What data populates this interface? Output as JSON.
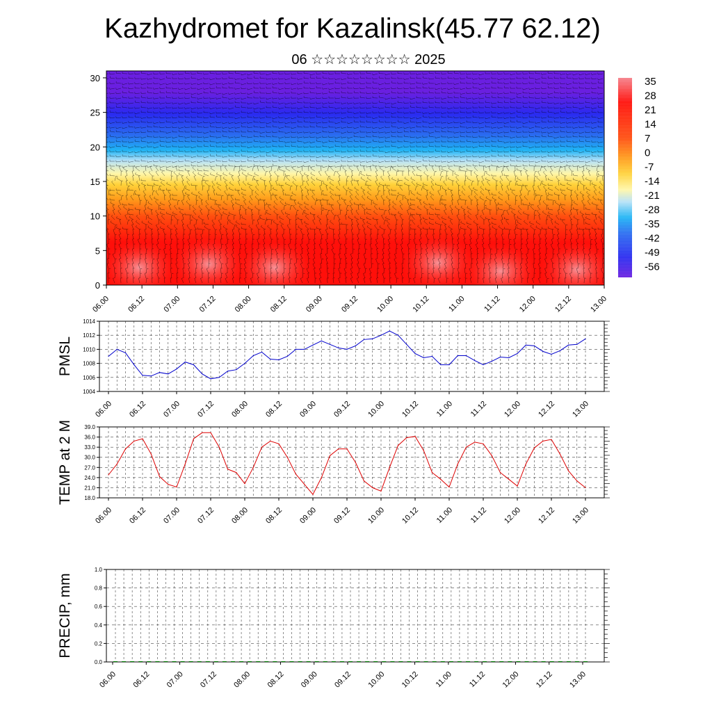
{
  "title": "Kazhydromet for Kazalinsk(45.77 62.12)",
  "subtitle": "06 ☆☆☆☆☆☆☆☆ 2025",
  "time_labels": [
    "06.00",
    "06.12",
    "07.00",
    "07.12",
    "08.00",
    "08.12",
    "09.00",
    "09.12",
    "10.00",
    "10.12",
    "11.00",
    "11.12",
    "12.00",
    "12.12",
    "13.00"
  ],
  "chart_data": [
    {
      "type": "heatmap",
      "name": "cross-section",
      "ylim": [
        0,
        31
      ],
      "y_ticks": [
        "0",
        "5",
        "10",
        "15",
        "20",
        "25",
        "30"
      ],
      "colorbar_labels": [
        "35",
        "28",
        "21",
        "14",
        "7",
        "0",
        "-7",
        "-14",
        "-21",
        "-28",
        "-35",
        "-42",
        "-49",
        "-56"
      ],
      "colorbar_range": [
        -63,
        42
      ],
      "colors": [
        "#6a1fe0",
        "#2a2af0",
        "#2a6cf0",
        "#1fb4f5",
        "#b8e2f7",
        "#fff6a8",
        "#ffd23a",
        "#ff9a1a",
        "#ff4d0f",
        "#ff0f0a",
        "#f5808a"
      ],
      "grid": false
    },
    {
      "type": "line",
      "ylabel": "PMSL",
      "ylim": [
        1004,
        1014
      ],
      "y_ticks": [
        "1004",
        "1006",
        "1008",
        "1010",
        "1012",
        "1014"
      ],
      "color": "#0000cc",
      "grid": true,
      "values": [
        1009.0,
        1010.0,
        1009.5,
        1007.8,
        1006.3,
        1006.2,
        1006.7,
        1006.5,
        1007.2,
        1008.2,
        1007.8,
        1006.5,
        1005.8,
        1006.0,
        1006.9,
        1007.1,
        1008.0,
        1009.1,
        1009.6,
        1008.6,
        1008.5,
        1009.0,
        1010.0,
        1010.0,
        1010.6,
        1011.2,
        1010.7,
        1010.2,
        1010.0,
        1010.5,
        1011.4,
        1011.5,
        1012.0,
        1012.6,
        1012.0,
        1010.7,
        1009.4,
        1008.8,
        1009.0,
        1007.8,
        1007.8,
        1009.1,
        1009.1,
        1008.4,
        1007.8,
        1008.3,
        1008.9,
        1008.8,
        1009.4,
        1010.6,
        1010.5,
        1009.7,
        1009.3,
        1009.8,
        1010.6,
        1010.7,
        1011.5
      ]
    },
    {
      "type": "line",
      "ylabel": "TEMP at 2 M",
      "ylim": [
        18,
        39
      ],
      "y_ticks": [
        "18.0",
        "21.0",
        "24.0",
        "27.0",
        "30.0",
        "33.0",
        "36.0",
        "39.0"
      ],
      "color": "#dd0000",
      "grid": true,
      "values": [
        24.8,
        28.0,
        32.5,
        34.8,
        35.5,
        31.0,
        24.3,
        22.0,
        21.2,
        28.0,
        35.5,
        37.3,
        37.3,
        33.0,
        26.5,
        25.5,
        22.2,
        27.0,
        33.0,
        34.8,
        34.0,
        30.0,
        25.0,
        22.0,
        19.0,
        24.0,
        30.5,
        32.5,
        32.5,
        28.5,
        23.0,
        21.0,
        20.0,
        27.0,
        33.5,
        35.8,
        36.2,
        32.0,
        25.5,
        23.5,
        21.2,
        28.0,
        33.0,
        34.5,
        34.0,
        30.5,
        25.5,
        23.5,
        21.5,
        28.0,
        32.8,
        34.8,
        35.3,
        31.0,
        26.0,
        23.0,
        21.0
      ]
    },
    {
      "type": "bar",
      "ylabel": "PRECIP, mm",
      "ylim": [
        0,
        1
      ],
      "y_ticks": [
        "0.0",
        "0.2",
        "0.4",
        "0.6",
        "0.8",
        "1.0"
      ],
      "color": "#008000",
      "grid": true,
      "values": [
        0,
        0,
        0,
        0,
        0,
        0,
        0,
        0,
        0,
        0,
        0,
        0,
        0,
        0,
        0,
        0,
        0,
        0,
        0,
        0,
        0,
        0,
        0,
        0,
        0,
        0,
        0,
        0,
        0,
        0,
        0,
        0,
        0,
        0,
        0,
        0,
        0,
        0,
        0,
        0,
        0,
        0,
        0,
        0,
        0,
        0,
        0,
        0,
        0,
        0,
        0,
        0,
        0,
        0,
        0,
        0,
        0
      ]
    }
  ]
}
